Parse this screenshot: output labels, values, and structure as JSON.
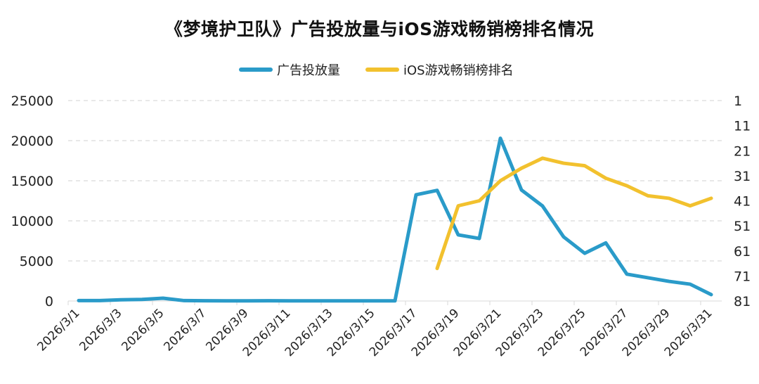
{
  "title": "《梦境护卫队》广告投放量与iOS游戏畅销榜排名情况",
  "legend": [
    {
      "label": "广告投放量",
      "color": "#2a9bc9"
    },
    {
      "label": "iOS游戏畅销榜排名",
      "color": "#f2c12e"
    }
  ],
  "chart_data": {
    "type": "line",
    "title": "《梦境护卫队》广告投放量与iOS游戏畅销榜排名情况",
    "xlabel": "",
    "ylabel": "",
    "y2label": "",
    "legend_position": "top",
    "grid": "horizontal dashed",
    "x": [
      "2026/3/1",
      "2026/3/2",
      "2026/3/3",
      "2026/3/4",
      "2026/3/5",
      "2026/3/6",
      "2026/3/7",
      "2026/3/8",
      "2026/3/9",
      "2026/3/10",
      "2026/3/11",
      "2026/3/12",
      "2026/3/13",
      "2026/3/14",
      "2026/3/15",
      "2026/3/16",
      "2026/3/17",
      "2026/3/18",
      "2026/3/19",
      "2026/3/20",
      "2026/3/21",
      "2026/3/22",
      "2026/3/23",
      "2026/3/24",
      "2026/3/25",
      "2026/3/26",
      "2026/3/27",
      "2026/3/28",
      "2026/3/29",
      "2026/3/30",
      "2026/3/31"
    ],
    "x_tick_labels": [
      "2026/3/1",
      "2026/3/3",
      "2026/3/5",
      "2026/3/7",
      "2026/3/9",
      "2026/3/11",
      "2026/3/13",
      "2026/3/15",
      "2026/3/17",
      "2026/3/19",
      "2026/3/21",
      "2026/3/23",
      "2026/3/25",
      "2026/3/27",
      "2026/3/29",
      "2026/3/31"
    ],
    "y_left": {
      "ticks": [
        0,
        5000,
        10000,
        15000,
        20000,
        25000
      ],
      "ylim": [
        0,
        25000
      ]
    },
    "y_right": {
      "ticks": [
        1,
        11,
        21,
        31,
        41,
        51,
        61,
        71,
        81
      ],
      "ylim": [
        81,
        1
      ],
      "inverted": true
    },
    "series": [
      {
        "name": "广告投放量",
        "axis": "left",
        "color": "#2a9bc9",
        "values": [
          60,
          50,
          150,
          200,
          350,
          50,
          30,
          20,
          20,
          30,
          20,
          20,
          20,
          20,
          20,
          20,
          13250,
          13800,
          8250,
          7800,
          20300,
          13850,
          11850,
          8000,
          5950,
          7250,
          3350,
          2900,
          2450,
          2100,
          800
        ]
      },
      {
        "name": "iOS游戏畅销榜排名",
        "axis": "right",
        "color": "#f2c12e",
        "values": [
          null,
          null,
          null,
          null,
          null,
          null,
          null,
          null,
          null,
          null,
          null,
          null,
          null,
          null,
          null,
          null,
          null,
          68,
          43,
          41,
          33,
          28,
          24,
          26,
          27,
          32,
          35,
          39,
          40,
          43,
          40
        ]
      }
    ]
  }
}
